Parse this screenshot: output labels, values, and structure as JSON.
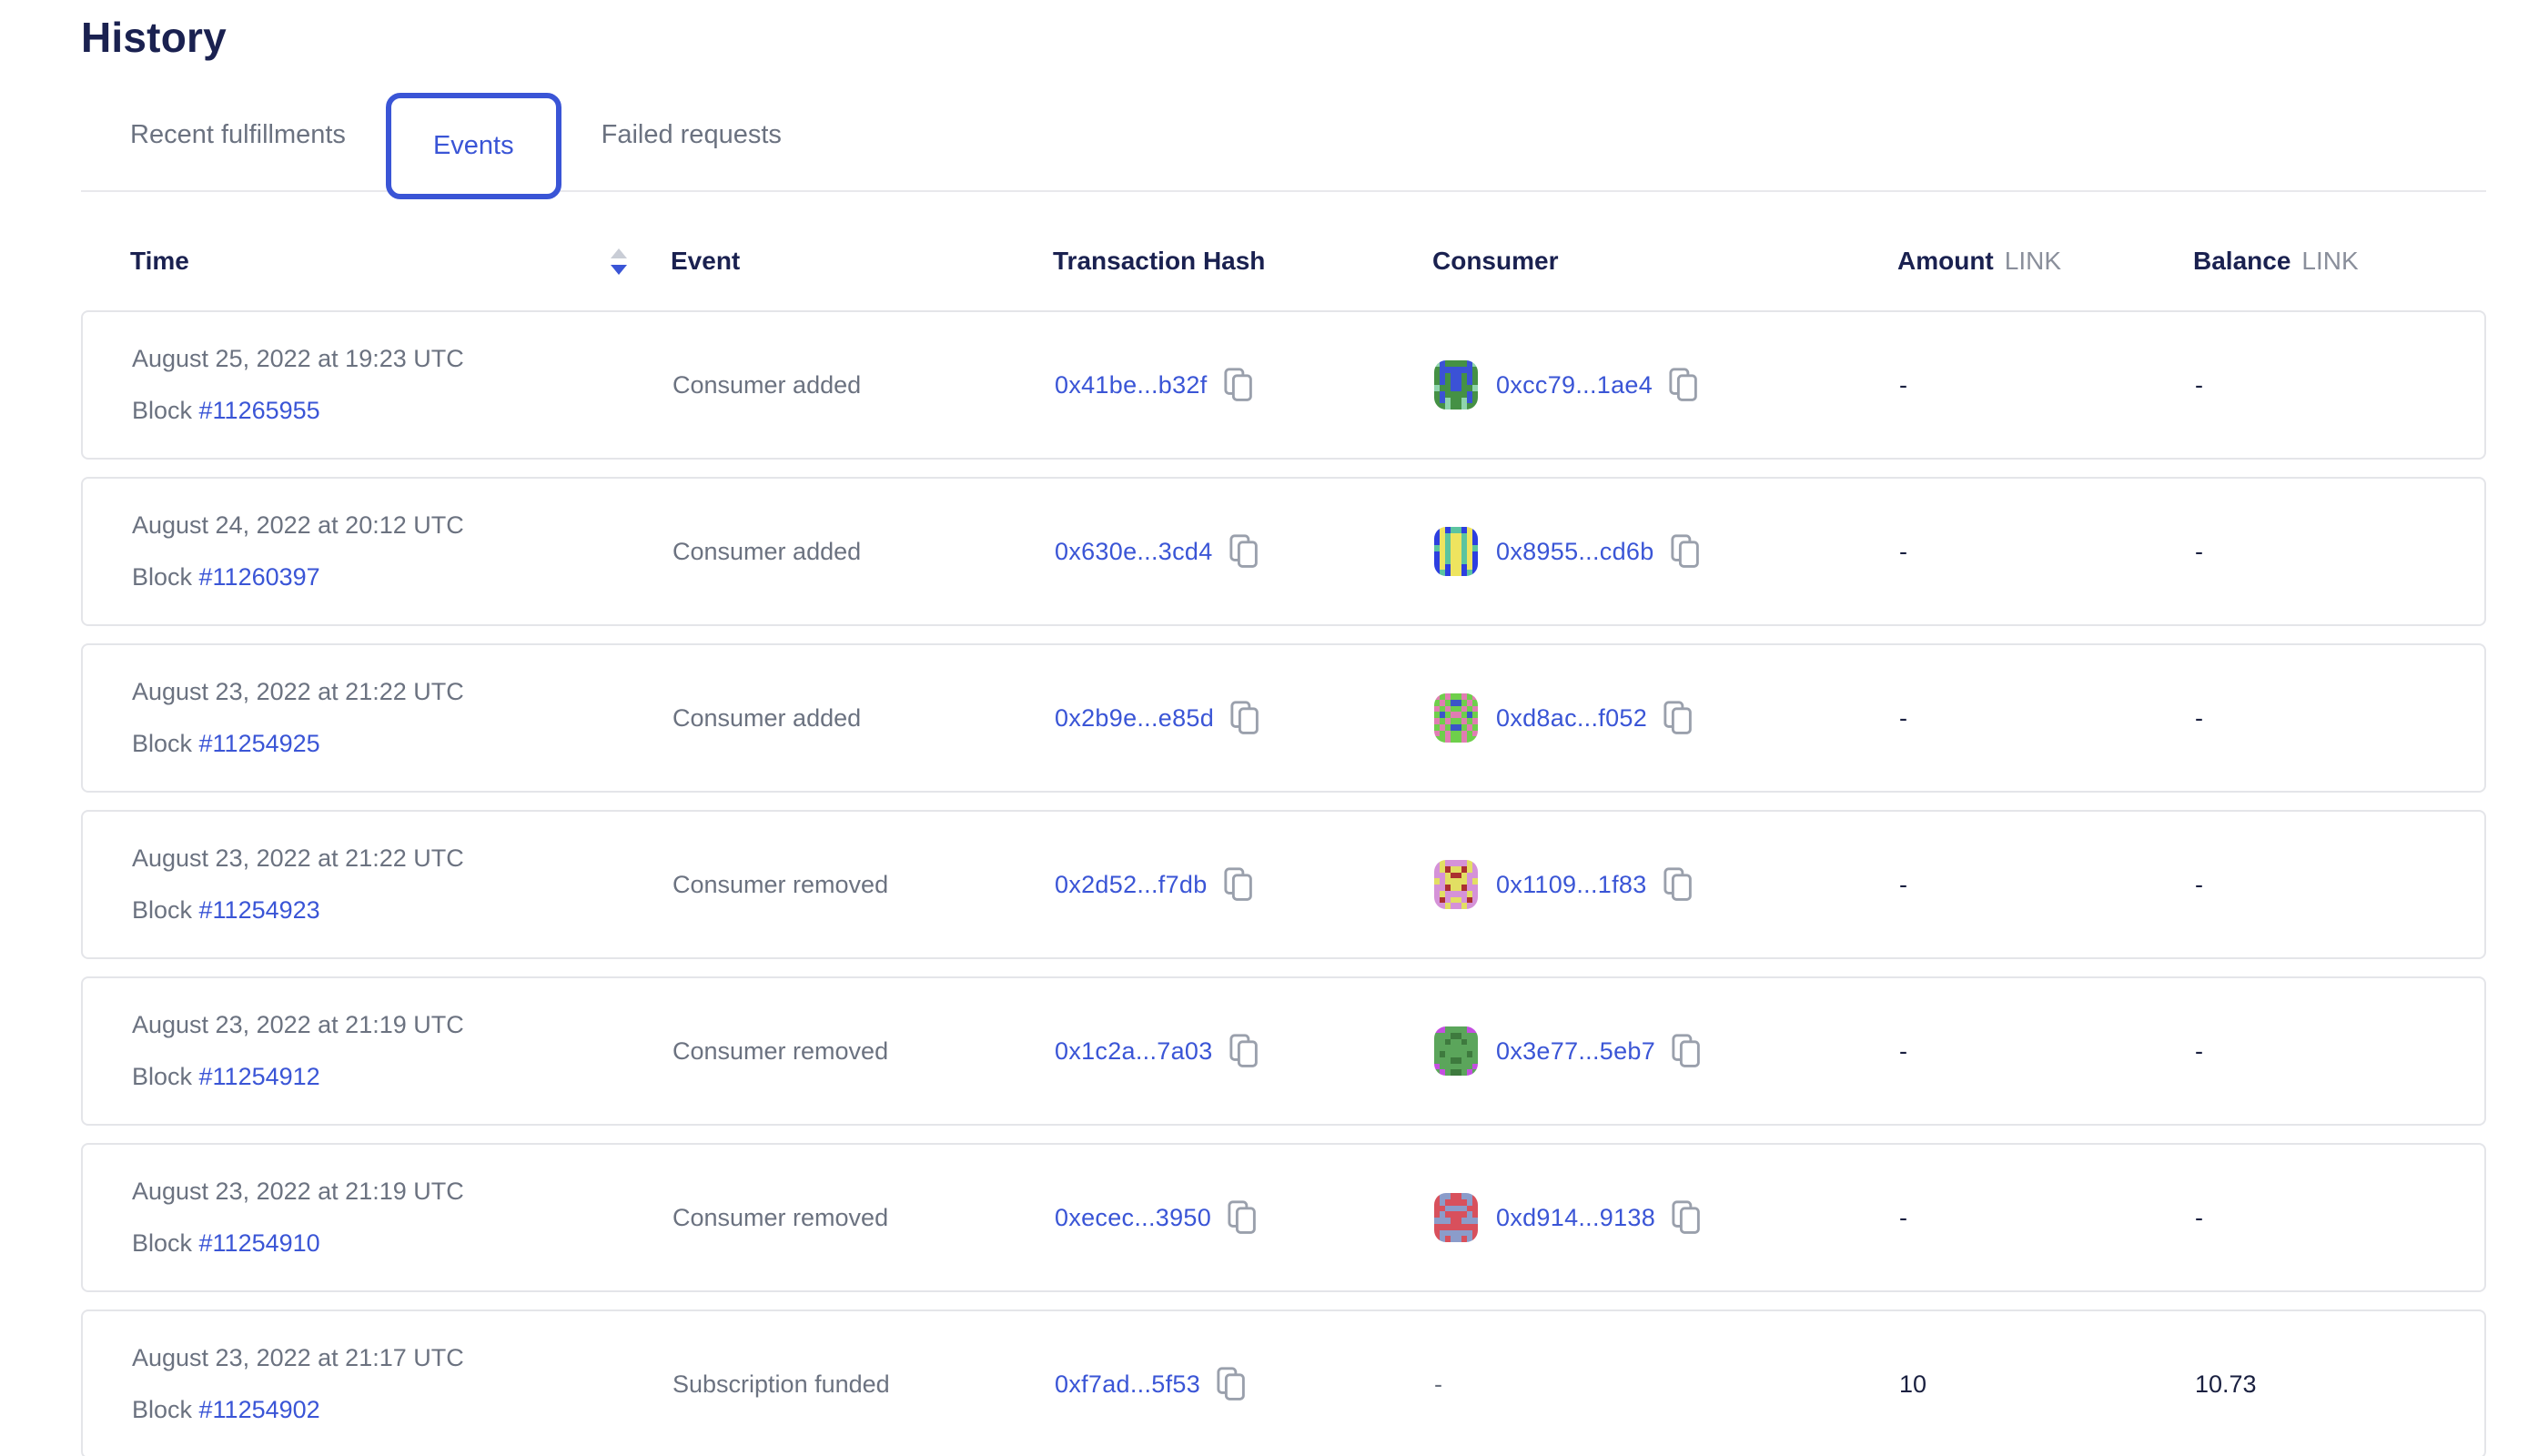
{
  "page": {
    "title": "History"
  },
  "tabs": {
    "items": [
      {
        "label": "Recent fulfillments",
        "active": false
      },
      {
        "label": "Events",
        "active": true
      },
      {
        "label": "Failed requests",
        "active": false
      }
    ]
  },
  "colors": {
    "accent_blue": "#3a55d6",
    "heading_navy": "#1a2150",
    "text_gray": "#6b7280",
    "card_border": "#e4e5e9"
  },
  "table": {
    "columns": {
      "time": "Time",
      "event": "Event",
      "tx_hash": "Transaction Hash",
      "consumer": "Consumer",
      "amount": "Amount",
      "balance": "Balance",
      "unit": "LINK"
    },
    "sort": {
      "column": "Time",
      "direction": "desc"
    },
    "block_label": "Block",
    "empty_placeholder": "-",
    "rows": [
      {
        "date": "August 25, 2022 at 19:23 UTC",
        "block": "#11265955",
        "event": "Consumer added",
        "tx_hash": "0x41be...b32f",
        "consumer": {
          "address": "0xcc79...1ae4",
          "icon": {
            "colors": [
              "#459145",
              "#3b52d6",
              "#8fd4ad"
            ],
            "pattern": [
              "21000012",
              "01111110",
              "01011010",
              "01011010",
              "20011002",
              "01000010",
              "01200210",
              "00200200"
            ]
          }
        },
        "amount": "-",
        "balance": "-"
      },
      {
        "date": "August 24, 2022 at 20:12 UTC",
        "block": "#11260397",
        "event": "Consumer added",
        "tx_hash": "0x630e...3cd4",
        "consumer": {
          "address": "0x8955...cd6b",
          "icon": {
            "colors": [
              "#2d3fe0",
              "#eee45f",
              "#5bc4a0"
            ],
            "pattern": [
              "01022010",
              "01211210",
              "01211210",
              "21211212",
              "01211210",
              "01211210",
              "01011010",
              "02011020"
            ]
          }
        },
        "amount": "-",
        "balance": "-"
      },
      {
        "date": "August 23, 2022 at 21:22 UTC",
        "block": "#11254925",
        "event": "Consumer added",
        "tx_hash": "0x2b9e...e85d",
        "consumer": {
          "address": "0xd8ac...f052",
          "icon": {
            "colors": [
              "#6ecf4b",
              "#e07db2",
              "#3b55c8"
            ],
            "pattern": [
              "10100101",
              "01022010",
              "10100101",
              "02011020",
              "10100101",
              "01022010",
              "10100101",
              "00100100"
            ]
          }
        },
        "amount": "-",
        "balance": "-"
      },
      {
        "date": "August 23, 2022 at 21:22 UTC",
        "block": "#11254923",
        "event": "Consumer removed",
        "tx_hash": "0x2d52...f7db",
        "consumer": {
          "address": "0x1109...1f83",
          "icon": {
            "colors": [
              "#d592d8",
              "#e2df63",
              "#ab3030"
            ],
            "pattern": [
              "01000010",
              "01211210",
              "00122100",
              "10111101",
              "00211200",
              "01000010",
              "02011020",
              "00100100"
            ]
          }
        },
        "amount": "-",
        "balance": "-"
      },
      {
        "date": "August 23, 2022 at 21:19 UTC",
        "block": "#11254912",
        "event": "Consumer removed",
        "tx_hash": "0x1c2a...7a03",
        "consumer": {
          "address": "0x3e77...5eb7",
          "icon": {
            "colors": [
              "#5ba55b",
              "#c44fe0",
              "#3e7a3e"
            ],
            "pattern": [
              "11000011",
              "00022000",
              "00200200",
              "00000000",
              "02000020",
              "00022000",
              "10000001",
              "01022010"
            ]
          }
        },
        "amount": "-",
        "balance": "-"
      },
      {
        "date": "August 23, 2022 at 21:19 UTC",
        "block": "#11254910",
        "event": "Consumer removed",
        "tx_hash": "0xecec...3950",
        "consumer": {
          "address": "0xd914...9138",
          "icon": {
            "colors": [
              "#d8505c",
              "#8b9cca",
              "#c76a74"
            ],
            "pattern": [
              "01100110",
              "01000010",
              "00111100",
              "01000010",
              "11100111",
              "00000000",
              "01111110",
              "01011010"
            ]
          }
        },
        "amount": "-",
        "balance": "-"
      },
      {
        "date": "August 23, 2022 at 21:17 UTC",
        "block": "#11254902",
        "event": "Subscription funded",
        "tx_hash": "0xf7ad...5f53",
        "consumer": null,
        "amount": "10",
        "balance": "10.73"
      }
    ]
  }
}
